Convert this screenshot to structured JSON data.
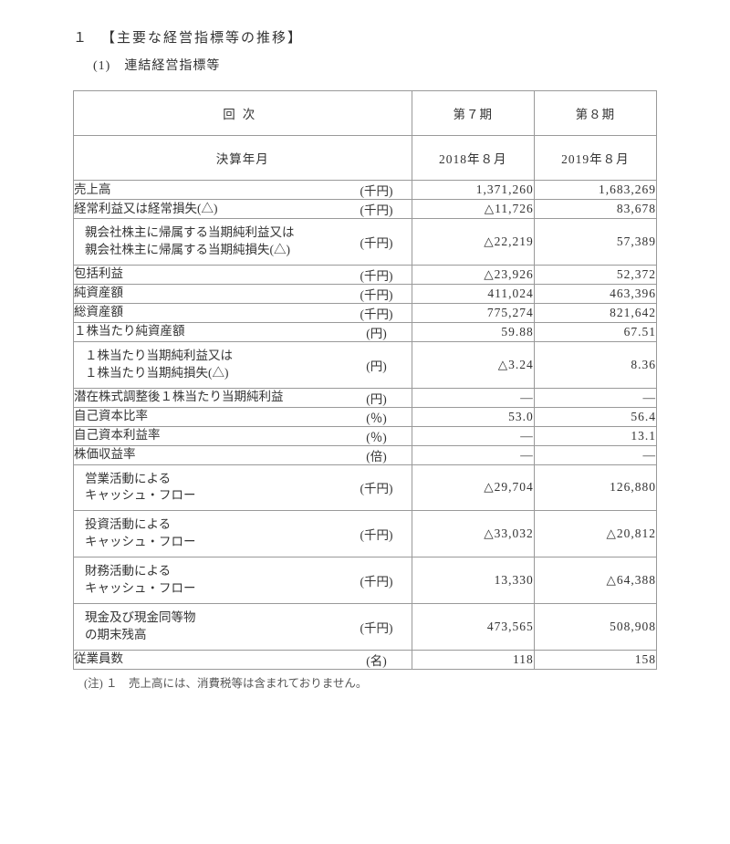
{
  "header": {
    "section_number": "１",
    "section_title": "【主要な経営指標等の推移】",
    "subsection": "(1)　連結経営指標等"
  },
  "table": {
    "period_label_main": "回次",
    "period_sublabel": "決算年月",
    "p7_header": "第７期",
    "p8_header": "第８期",
    "p7_date": "2018年８月",
    "p8_date": "2019年８月",
    "rows": [
      {
        "label": "売上高",
        "unit": "(千円)",
        "p7": "1,371,260",
        "p8": "1,683,269",
        "tight": false
      },
      {
        "label": "経常利益又は経常損失(△)",
        "unit": "(千円)",
        "p7": "△11,726",
        "p8": "83,678",
        "tight": false
      },
      {
        "label": "親会社株主に帰属する当期純利益又は\n親会社株主に帰属する当期純損失(△)",
        "unit": "(千円)",
        "p7": "△22,219",
        "p8": "57,389",
        "tight": true
      },
      {
        "label": "包括利益",
        "unit": "(千円)",
        "p7": "△23,926",
        "p8": "52,372",
        "tight": false
      },
      {
        "label": "純資産額",
        "unit": "(千円)",
        "p7": "411,024",
        "p8": "463,396",
        "tight": false
      },
      {
        "label": "総資産額",
        "unit": "(千円)",
        "p7": "775,274",
        "p8": "821,642",
        "tight": false
      },
      {
        "label": "１株当たり純資産額",
        "unit": "(円)",
        "p7": "59.88",
        "p8": "67.51",
        "tight": false
      },
      {
        "label": "１株当たり当期純利益又は\n１株当たり当期純損失(△)",
        "unit": "(円)",
        "p7": "△3.24",
        "p8": "8.36",
        "tight": true
      },
      {
        "label": "潜在株式調整後１株当たり当期純利益",
        "unit": "(円)",
        "p7": "―",
        "p8": "―",
        "tight": false
      },
      {
        "label": "自己資本比率",
        "unit": "(％)",
        "p7": "53.0",
        "p8": "56.4",
        "tight": false
      },
      {
        "label": "自己資本利益率",
        "unit": "(％)",
        "p7": "―",
        "p8": "13.1",
        "tight": false
      },
      {
        "label": "株価収益率",
        "unit": "(倍)",
        "p7": "―",
        "p8": "―",
        "tight": false
      },
      {
        "label": "営業活動による\nキャッシュ・フロー",
        "unit": "(千円)",
        "p7": "△29,704",
        "p8": "126,880",
        "tight": true
      },
      {
        "label": "投資活動による\nキャッシュ・フロー",
        "unit": "(千円)",
        "p7": "△33,032",
        "p8": "△20,812",
        "tight": true
      },
      {
        "label": "財務活動による\nキャッシュ・フロー",
        "unit": "(千円)",
        "p7": "13,330",
        "p8": "△64,388",
        "tight": true
      },
      {
        "label": "現金及び現金同等物\nの期末残高",
        "unit": "(千円)",
        "p7": "473,565",
        "p8": "508,908",
        "tight": true
      },
      {
        "label": "従業員数",
        "unit": "(名)",
        "p7": "118",
        "p8": "158",
        "tight": false
      }
    ]
  },
  "footnote": "(注) １　売上高には、消費税等は含まれておりません。"
}
